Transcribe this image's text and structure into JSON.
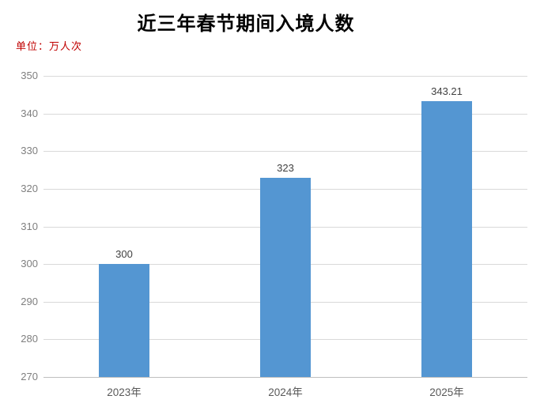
{
  "title": "近三年春节期间入境人数",
  "unit_label": "单位：万人次",
  "colors": {
    "bar": "#5496D2",
    "gridline": "#D9D9D9",
    "axis_line": "#BFBFBF",
    "ytick_label": "#7F7F7F",
    "xtick_label": "#595959",
    "value_label": "#404040",
    "title": "#000000",
    "unit_label": "#C00000",
    "background": "#FFFFFF"
  },
  "chart_data": {
    "type": "bar",
    "title": "近三年春节期间入境人数",
    "unit": "万人次",
    "categories": [
      "2023年",
      "2024年",
      "2025年"
    ],
    "values": [
      300,
      323,
      343.21
    ],
    "value_labels": [
      "300",
      "323",
      "343.21"
    ],
    "yticks": [
      350,
      340,
      330,
      320,
      310,
      300,
      290,
      280,
      270
    ],
    "ylim": [
      270,
      350
    ],
    "grid": true,
    "legend": false,
    "xlabel": "",
    "ylabel": "单位：万人次"
  }
}
